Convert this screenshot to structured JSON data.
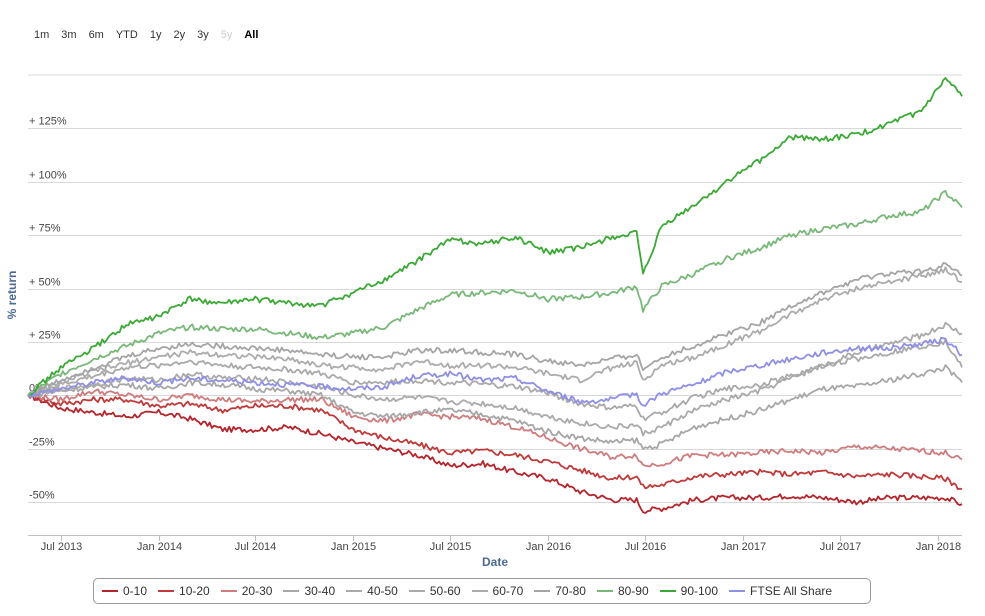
{
  "range_selector": {
    "buttons": [
      {
        "label": "1m",
        "state": "normal"
      },
      {
        "label": "3m",
        "state": "normal"
      },
      {
        "label": "6m",
        "state": "normal"
      },
      {
        "label": "YTD",
        "state": "normal"
      },
      {
        "label": "1y",
        "state": "normal"
      },
      {
        "label": "2y",
        "state": "normal"
      },
      {
        "label": "3y",
        "state": "normal"
      },
      {
        "label": "5y",
        "state": "disabled"
      },
      {
        "label": "All",
        "state": "active"
      }
    ]
  },
  "chart_data": {
    "type": "line",
    "title": "",
    "xlabel": "Date",
    "ylabel": "% return",
    "x_range": [
      "2013-05-01",
      "2018-02-15"
    ],
    "ylim": [
      -65,
      150
    ],
    "y_ticks": [
      {
        "value": -50,
        "label": "-50%"
      },
      {
        "value": -25,
        "label": "-25%"
      },
      {
        "value": 0,
        "label": "0%"
      },
      {
        "value": 25,
        "label": "+ 25%"
      },
      {
        "value": 50,
        "label": "+ 50%"
      },
      {
        "value": 75,
        "label": "+ 75%"
      },
      {
        "value": 100,
        "label": "+ 100%"
      },
      {
        "value": 125,
        "label": "+ 125%"
      }
    ],
    "x_ticks": [
      {
        "value": "2013-07-01",
        "label": "Jul 2013"
      },
      {
        "value": "2014-01-01",
        "label": "Jan 2014"
      },
      {
        "value": "2014-07-01",
        "label": "Jul 2014"
      },
      {
        "value": "2015-01-01",
        "label": "Jan 2015"
      },
      {
        "value": "2015-07-01",
        "label": "Jul 2015"
      },
      {
        "value": "2016-01-01",
        "label": "Jan 2016"
      },
      {
        "value": "2016-07-01",
        "label": "Jul 2016"
      },
      {
        "value": "2017-01-01",
        "label": "Jan 2017"
      },
      {
        "value": "2017-07-01",
        "label": "Jul 2017"
      },
      {
        "value": "2018-01-01",
        "label": "Jan 2018"
      }
    ],
    "grid": true,
    "legend_position": "bottom",
    "dates": [
      "2013-05-01",
      "2013-07-01",
      "2013-09-01",
      "2013-11-01",
      "2014-01-01",
      "2014-03-01",
      "2014-05-01",
      "2014-07-01",
      "2014-09-01",
      "2014-11-01",
      "2015-01-01",
      "2015-03-01",
      "2015-05-01",
      "2015-07-01",
      "2015-09-01",
      "2015-11-01",
      "2016-01-01",
      "2016-03-01",
      "2016-05-01",
      "2016-06-15",
      "2016-06-27",
      "2016-08-01",
      "2016-10-01",
      "2016-12-01",
      "2017-02-01",
      "2017-04-01",
      "2017-06-01",
      "2017-08-01",
      "2017-10-01",
      "2017-12-01",
      "2018-01-15",
      "2018-02-15"
    ],
    "series": [
      {
        "name": "0-10",
        "color": "#b5252c",
        "values": [
          0,
          -6,
          -8,
          -10,
          -8,
          -11,
          -16,
          -16,
          -15,
          -18,
          -22,
          -25,
          -28,
          -33,
          -32,
          -36,
          -39,
          -45,
          -49,
          -49,
          -54,
          -53,
          -49,
          -48,
          -48,
          -47,
          -48,
          -50,
          -48,
          -48,
          -48,
          -51
        ]
      },
      {
        "name": "10-20",
        "color": "#c03a3a",
        "values": [
          0,
          -4,
          -2,
          -2,
          -5,
          -4,
          -7,
          -5,
          -5,
          -7,
          -16,
          -20,
          -23,
          -27,
          -26,
          -28,
          -31,
          -35,
          -39,
          -38,
          -43,
          -42,
          -38,
          -37,
          -36,
          -37,
          -36,
          -38,
          -37,
          -38,
          -39,
          -44
        ]
      },
      {
        "name": "20-30",
        "color": "#cf7c7e",
        "values": [
          0,
          -2,
          2,
          0,
          -2,
          0,
          -2,
          -3,
          -2,
          -2,
          -10,
          -12,
          -9,
          -10,
          -11,
          -15,
          -20,
          -25,
          -29,
          -28,
          -33,
          -32,
          -28,
          -28,
          -27,
          -26,
          -27,
          -24,
          -25,
          -26,
          -27,
          -30
        ]
      },
      {
        "name": "30-40",
        "color": "#a7a7a7",
        "values": [
          0,
          2,
          4,
          5,
          3,
          6,
          5,
          3,
          2,
          0,
          -8,
          -10,
          -8,
          -7,
          -9,
          -12,
          -17,
          -20,
          -22,
          -21,
          -25,
          -23,
          -15,
          -11,
          -7,
          -2,
          3,
          4,
          7,
          10,
          13,
          6
        ]
      },
      {
        "name": "40-50",
        "color": "#aaaaaa",
        "values": [
          0,
          3,
          5,
          8,
          7,
          10,
          8,
          8,
          6,
          4,
          0,
          -2,
          -1,
          -3,
          -4,
          -6,
          -10,
          -13,
          -15,
          -14,
          -18,
          -15,
          -7,
          -2,
          2,
          8,
          14,
          17,
          20,
          23,
          25,
          13
        ]
      },
      {
        "name": "50-60",
        "color": "#a9a9a9",
        "values": [
          0,
          5,
          9,
          13,
          14,
          16,
          14,
          13,
          12,
          10,
          6,
          6,
          7,
          6,
          5,
          4,
          1,
          -4,
          -6,
          -5,
          -11,
          -8,
          -1,
          3,
          5,
          9,
          14,
          20,
          24,
          28,
          33,
          29
        ]
      },
      {
        "name": "60-70",
        "color": "#acacac",
        "values": [
          0,
          6,
          11,
          15,
          18,
          20,
          19,
          18,
          17,
          14,
          13,
          12,
          16,
          14,
          14,
          13,
          10,
          7,
          13,
          15,
          7,
          14,
          18,
          24,
          30,
          38,
          45,
          50,
          53,
          56,
          59,
          53
        ]
      },
      {
        "name": "70-80",
        "color": "#a5a5a5",
        "values": [
          0,
          7,
          13,
          18,
          22,
          24,
          23,
          22,
          21,
          19,
          18,
          18,
          21,
          21,
          20,
          19,
          16,
          14,
          17,
          19,
          12,
          18,
          23,
          29,
          34,
          42,
          48,
          54,
          57,
          58,
          61,
          56
        ]
      },
      {
        "name": "80-90",
        "color": "#78b878",
        "values": [
          0,
          10,
          17,
          23,
          29,
          32,
          31,
          31,
          29,
          27,
          29,
          32,
          40,
          47,
          48,
          49,
          45,
          46,
          48,
          51,
          40,
          51,
          57,
          64,
          69,
          75,
          78,
          80,
          84,
          86,
          95,
          88
        ]
      },
      {
        "name": "90-100",
        "color": "#3ba935",
        "values": [
          0,
          13,
          22,
          33,
          37,
          45,
          43,
          45,
          43,
          42,
          48,
          54,
          63,
          73,
          71,
          74,
          67,
          69,
          74,
          76,
          56,
          79,
          89,
          100,
          110,
          121,
          120,
          122,
          127,
          133,
          148,
          140
        ]
      },
      {
        "name": "FTSE All Share",
        "color": "#8f8fe6",
        "values": [
          0,
          3,
          6,
          8,
          6,
          8,
          7,
          6,
          5,
          4,
          3,
          4,
          9,
          10,
          7,
          8,
          2,
          -3,
          -2,
          1,
          -5,
          1,
          5,
          11,
          14,
          17,
          20,
          22,
          22,
          24,
          26,
          19
        ]
      }
    ]
  }
}
